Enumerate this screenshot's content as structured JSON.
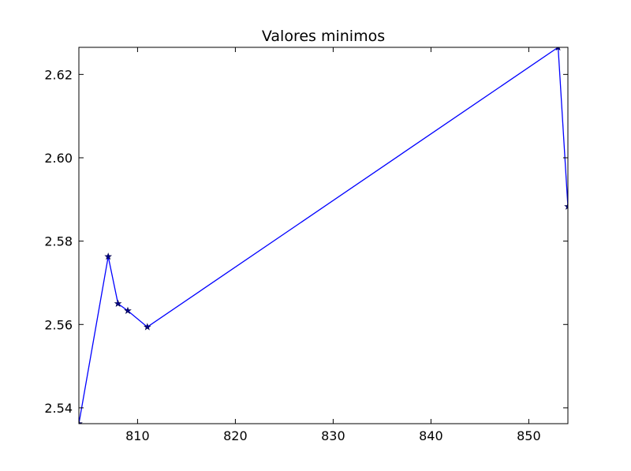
{
  "chart_data": {
    "type": "line",
    "title": "Valores minimos",
    "xlabel": "",
    "ylabel": "",
    "xlim": [
      804,
      854
    ],
    "ylim": [
      2.5362,
      2.6265
    ],
    "x_ticks": [
      810,
      820,
      830,
      840,
      850
    ],
    "y_ticks": [
      2.54,
      2.56,
      2.58,
      2.6,
      2.62
    ],
    "x_tick_labels": [
      "810",
      "820",
      "830",
      "840",
      "850"
    ],
    "y_tick_labels": [
      "2.54",
      "2.56",
      "2.58",
      "2.60",
      "2.62"
    ],
    "grid": false,
    "series": [
      {
        "color": "#0000ff",
        "marker": "star",
        "x": [
          804,
          807,
          808,
          809,
          811,
          853,
          854
        ],
        "y": [
          2.5362,
          2.5763,
          2.565,
          2.5633,
          2.5594,
          2.6265,
          2.5883
        ]
      }
    ]
  }
}
